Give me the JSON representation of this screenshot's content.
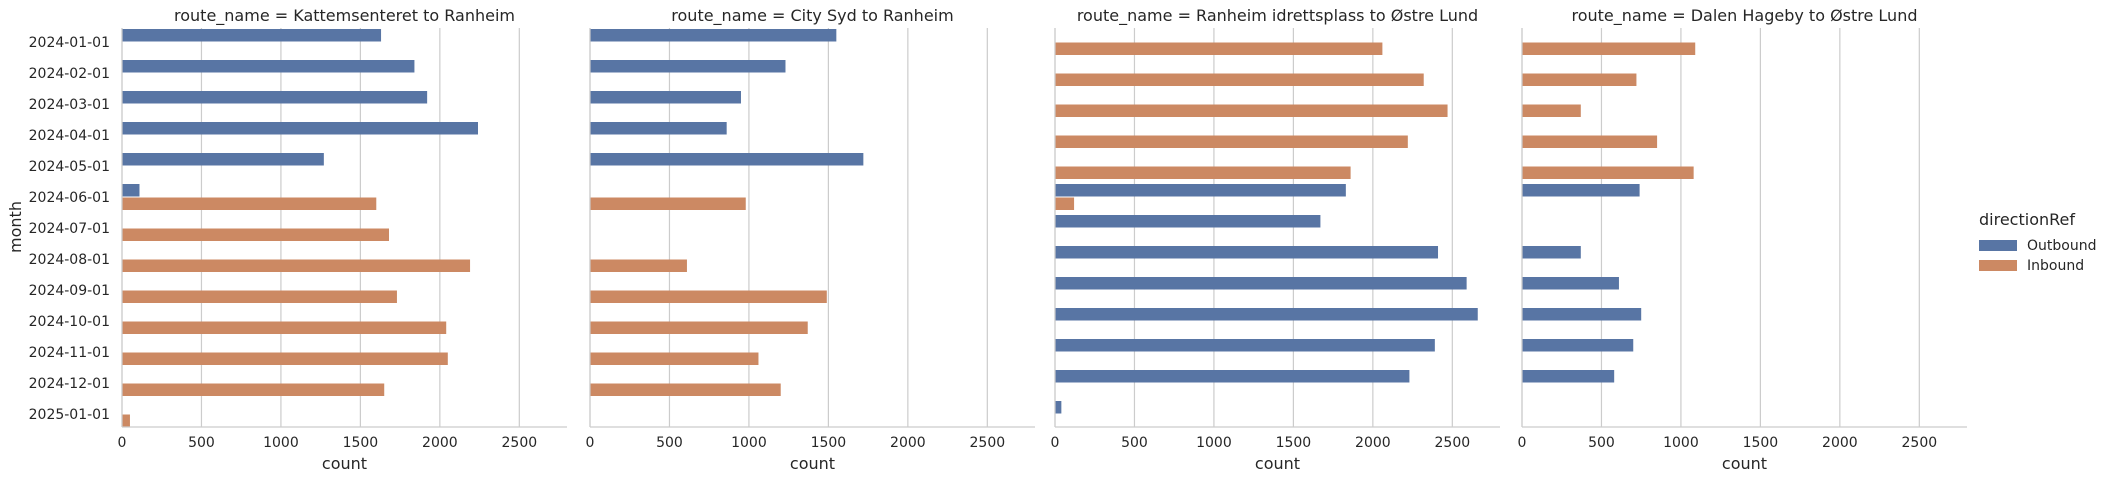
{
  "chart_data": {
    "type": "bar",
    "orientation": "horizontal",
    "grid": "vertical",
    "y_label": "month",
    "x_label": "count",
    "xlim": [
      0,
      2800
    ],
    "x_ticks": [
      "0",
      "500",
      "1000",
      "1500",
      "2000",
      "2500"
    ],
    "months": [
      "2024-01-01",
      "2024-02-01",
      "2024-03-01",
      "2024-04-01",
      "2024-05-01",
      "2024-06-01",
      "2024-07-01",
      "2024-08-01",
      "2024-09-01",
      "2024-10-01",
      "2024-11-01",
      "2024-12-01",
      "2025-01-01"
    ],
    "legend": {
      "title": "directionRef",
      "placement": "right",
      "entries": [
        {
          "name": "Outbound",
          "color": "#5875a4"
        },
        {
          "name": "Inbound",
          "color": "#cc8963"
        }
      ]
    },
    "panels": [
      {
        "title": "route_name = Kattemsenteret to Ranheim",
        "series": [
          {
            "name": "Outbound",
            "values": [
              1630,
              1840,
              1920,
              2240,
              1270,
              110,
              null,
              null,
              null,
              null,
              null,
              null,
              null
            ]
          },
          {
            "name": "Inbound",
            "values": [
              null,
              null,
              null,
              null,
              null,
              1600,
              1680,
              2190,
              1730,
              2040,
              2050,
              1650,
              50
            ]
          }
        ]
      },
      {
        "title": "route_name = City Syd to Ranheim",
        "series": [
          {
            "name": "Outbound",
            "values": [
              1550,
              1230,
              950,
              860,
              1720,
              null,
              null,
              null,
              null,
              null,
              null,
              null,
              null
            ]
          },
          {
            "name": "Inbound",
            "values": [
              null,
              null,
              null,
              null,
              null,
              980,
              null,
              610,
              1490,
              1370,
              1060,
              1200,
              null
            ]
          }
        ]
      },
      {
        "title": "route_name = Ranheim idrettsplass to Østre Lund",
        "series": [
          {
            "name": "Outbound",
            "values": [
              null,
              null,
              null,
              null,
              null,
              1830,
              1670,
              2410,
              2590,
              2660,
              2390,
              2230,
              40
            ]
          },
          {
            "name": "Inbound",
            "values": [
              2060,
              2320,
              2470,
              2220,
              1860,
              120,
              null,
              null,
              null,
              null,
              null,
              null,
              null
            ]
          }
        ]
      },
      {
        "title": "route_name = Dalen Hageby to Østre Lund",
        "series": [
          {
            "name": "Outbound",
            "values": [
              null,
              null,
              null,
              null,
              null,
              740,
              null,
              370,
              610,
              750,
              700,
              580,
              null
            ]
          },
          {
            "name": "Inbound",
            "values": [
              1090,
              720,
              370,
              850,
              1080,
              null,
              null,
              null,
              null,
              null,
              null,
              null,
              null
            ]
          }
        ]
      }
    ]
  }
}
